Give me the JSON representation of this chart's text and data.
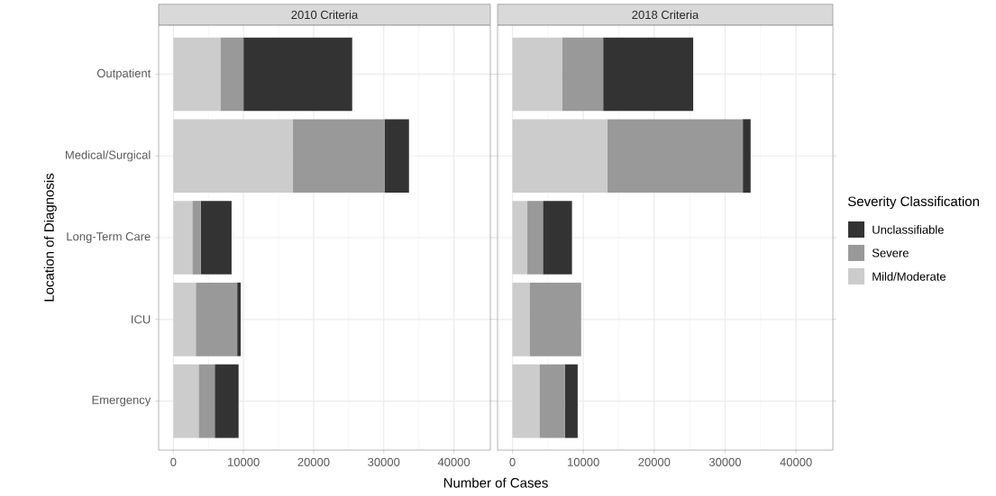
{
  "chart_data": [
    {
      "type": "bar",
      "orientation": "horizontal",
      "stacked": true,
      "title": "2010 Criteria",
      "xlabel": "Number of Cases",
      "ylabel": "Location of Diagnosis",
      "categories": [
        "Outpatient",
        "Medical/Surgical",
        "Long-Term Care",
        "ICU",
        "Emergency"
      ],
      "series": [
        {
          "color": "#cccccc",
          "values": [
            6700,
            17000,
            2700,
            3200,
            3600
          ]
        },
        {
          "color": "#999999",
          "values": [
            3300,
            13100,
            1200,
            5900,
            2300
          ]
        },
        {
          "color": "#333333",
          "values": [
            15500,
            3500,
            4400,
            500,
            3400
          ]
        }
      ],
      "xlim": [
        -2100,
        45200
      ],
      "xticks": [
        0,
        10000,
        20000,
        30000,
        40000
      ],
      "grid": true
    },
    {
      "type": "bar",
      "orientation": "horizontal",
      "stacked": true,
      "title": "2018 Criteria",
      "legend_title": "Severity Classification",
      "legend": "right",
      "tick_labels": "x",
      "categories": [
        null,
        null,
        null,
        null,
        null
      ],
      "series": [
        {
          "name": "Mild/Moderate",
          "color": "#cccccc",
          "values": [
            7000,
            13400,
            2100,
            2400,
            3800
          ]
        },
        {
          "name": "Severe",
          "color": "#999999",
          "values": [
            5800,
            19100,
            2200,
            7300,
            3600
          ]
        },
        {
          "name": "Unclassifiable",
          "color": "#333333",
          "values": [
            12700,
            1100,
            4100,
            0,
            1800
          ]
        }
      ],
      "xlim": [
        -2100,
        45200
      ],
      "xticks": [
        0,
        10000,
        20000,
        30000,
        40000
      ],
      "grid": true
    }
  ]
}
